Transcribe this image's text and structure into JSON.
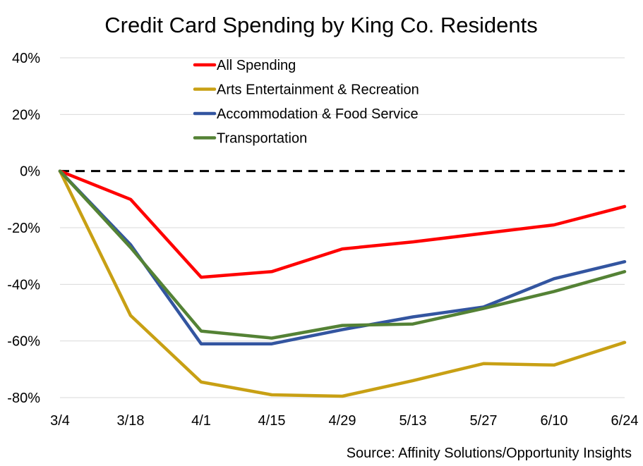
{
  "chart_data": {
    "type": "line",
    "title": "Credit Card Spending by King Co. Residents",
    "xlabel": "",
    "ylabel": "",
    "x": [
      "3/4",
      "3/18",
      "4/1",
      "4/15",
      "4/29",
      "5/13",
      "5/27",
      "6/10",
      "6/24"
    ],
    "ylim": [
      -80,
      40
    ],
    "yticks": [
      40,
      20,
      0,
      -20,
      -40,
      -60,
      -80
    ],
    "ytick_labels": [
      "40%",
      "20%",
      "0%",
      "-20%",
      "-40%",
      "-60%",
      "-80%"
    ],
    "grid": "horizontal",
    "legend_position": "top-left",
    "reference_line": {
      "y": 0,
      "style": "dashed",
      "color": "#000000"
    },
    "series": [
      {
        "name": "All Spending",
        "color": "#ff0000",
        "values": [
          0,
          -10,
          -37.5,
          -35.5,
          -27.5,
          -25,
          -22,
          -19,
          -12.5
        ]
      },
      {
        "name": "Arts Entertainment & Recreation",
        "color": "#c8a014",
        "values": [
          0,
          -51,
          -74.5,
          -79,
          -79.5,
          -74,
          -68,
          -68.5,
          -60.5
        ]
      },
      {
        "name": "Accommodation & Food Service",
        "color": "#3355a0",
        "values": [
          0,
          -26,
          -61,
          -61,
          -56,
          -51.5,
          -48,
          -38,
          -32
        ]
      },
      {
        "name": "Transportation",
        "color": "#548235",
        "values": [
          0,
          -27,
          -56.5,
          -59,
          -54.5,
          -54,
          -48.5,
          -42.5,
          -35.5
        ]
      }
    ],
    "source_note": "Source: Affinity Solutions/Opportunity Insights"
  }
}
